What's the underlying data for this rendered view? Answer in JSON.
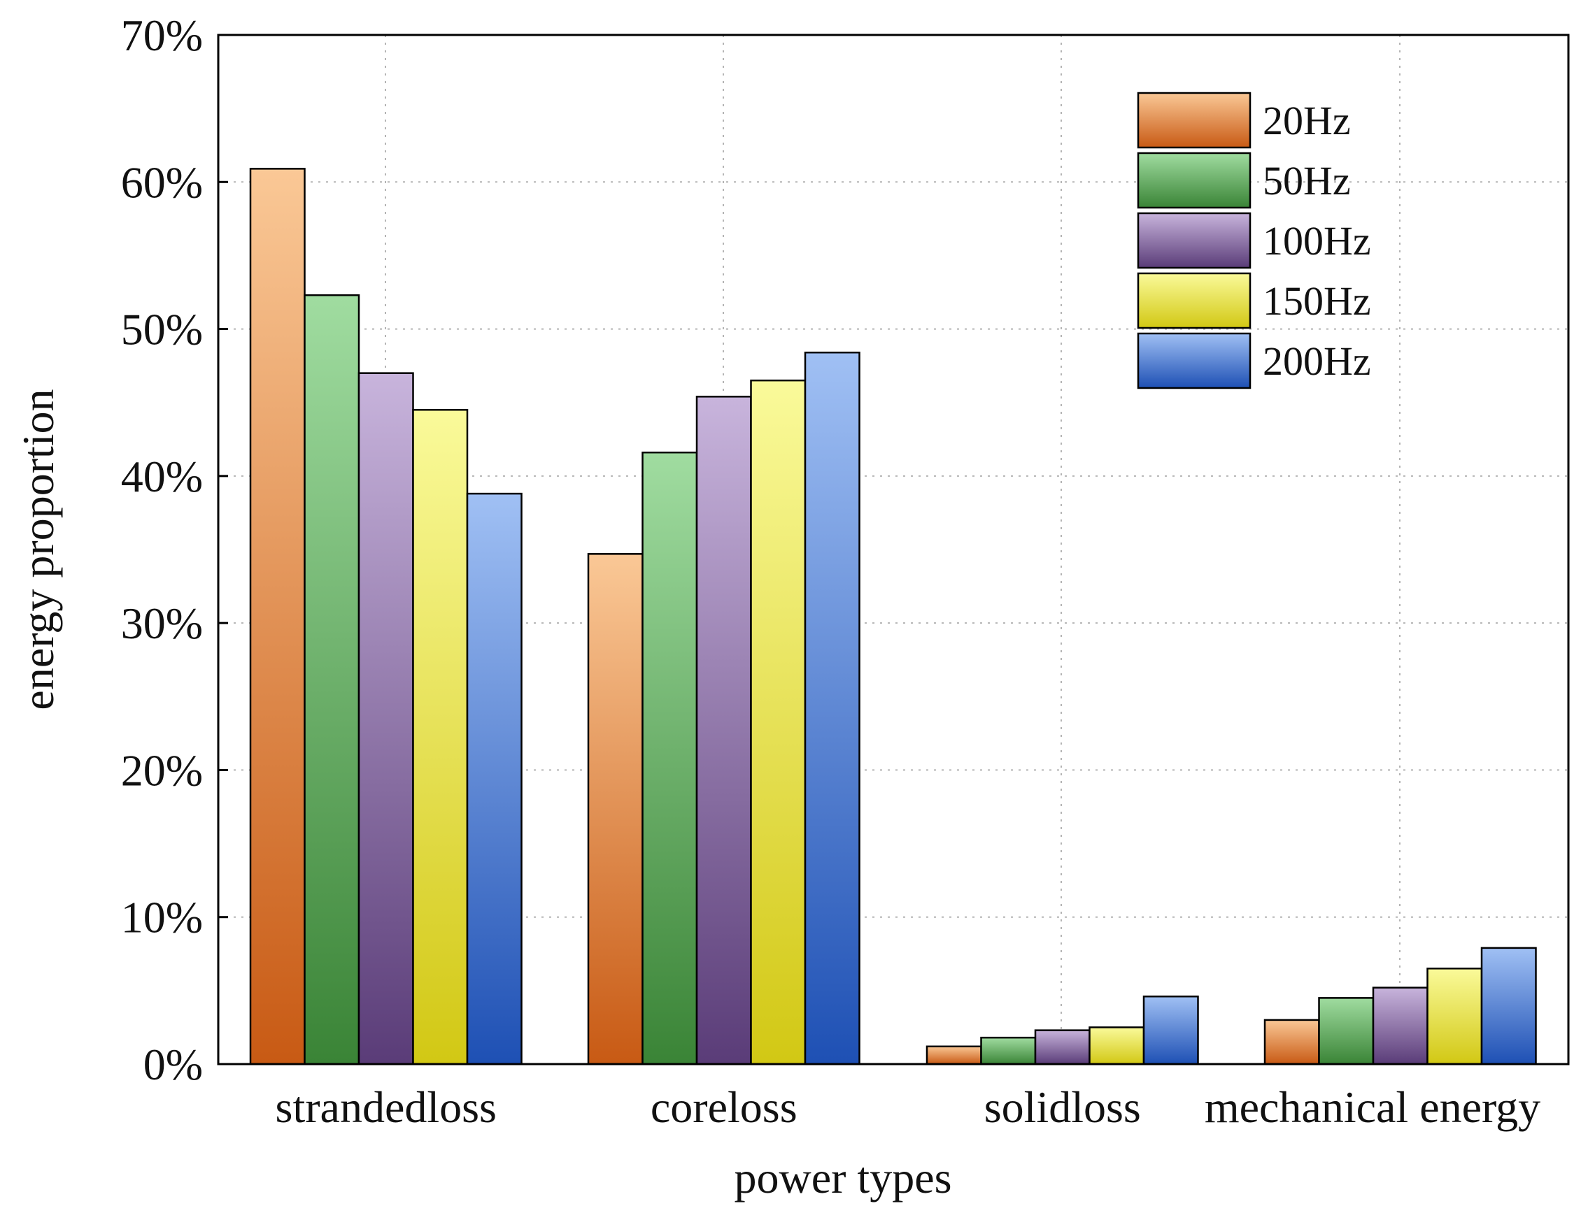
{
  "chart_data": {
    "type": "bar",
    "title": "",
    "xlabel": "power types",
    "ylabel": "energy proportion",
    "ylim": [
      0,
      70
    ],
    "yticks": [
      0,
      10,
      20,
      30,
      40,
      50,
      60,
      70
    ],
    "ytick_labels": [
      "0%",
      "10%",
      "20%",
      "30%",
      "40%",
      "50%",
      "60%",
      "70%"
    ],
    "categories": [
      "strandedloss",
      "coreloss",
      "solidloss",
      "mechanical energy"
    ],
    "grid": true,
    "legend_position": "top-right",
    "series": [
      {
        "name": "20Hz",
        "values": [
          60.9,
          34.7,
          1.2,
          3.0
        ],
        "color_top": "#fac896",
        "color_bottom": "#c85a14"
      },
      {
        "name": "50Hz",
        "values": [
          52.3,
          41.6,
          1.8,
          4.5
        ],
        "color_top": "#a0dca0",
        "color_bottom": "#3a8436"
      },
      {
        "name": "100Hz",
        "values": [
          47.0,
          45.4,
          2.3,
          5.2
        ],
        "color_top": "#c8b4dc",
        "color_bottom": "#5a3c78"
      },
      {
        "name": "150Hz",
        "values": [
          44.5,
          46.5,
          2.5,
          6.5
        ],
        "color_top": "#fafa9a",
        "color_bottom": "#d2c814"
      },
      {
        "name": "200Hz",
        "values": [
          38.8,
          48.4,
          4.6,
          7.9
        ],
        "color_top": "#a0c0f4",
        "color_bottom": "#1e50b4"
      }
    ]
  }
}
